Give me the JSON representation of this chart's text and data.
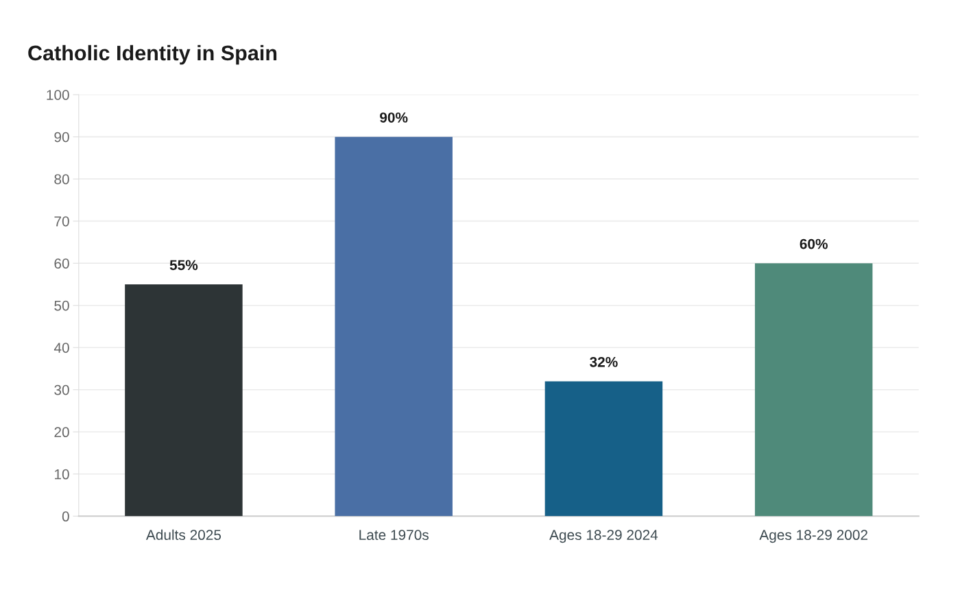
{
  "chart_data": {
    "type": "bar",
    "title": "Catholic Identity in Spain",
    "categories": [
      "Adults 2025",
      "Late 1970s",
      "Ages 18-29 2024",
      "Ages 18-29 2002"
    ],
    "values": [
      55,
      90,
      32,
      60
    ],
    "colors": [
      "#2d3436",
      "#4a6fa5",
      "#166088",
      "#4f8a7a"
    ],
    "value_labels": [
      "55%",
      "90%",
      "32%",
      "60%"
    ],
    "ylim": [
      0,
      100
    ],
    "yticks": [
      0,
      10,
      20,
      30,
      40,
      50,
      60,
      70,
      80,
      90,
      100
    ],
    "grid": "y",
    "legend": false
  }
}
